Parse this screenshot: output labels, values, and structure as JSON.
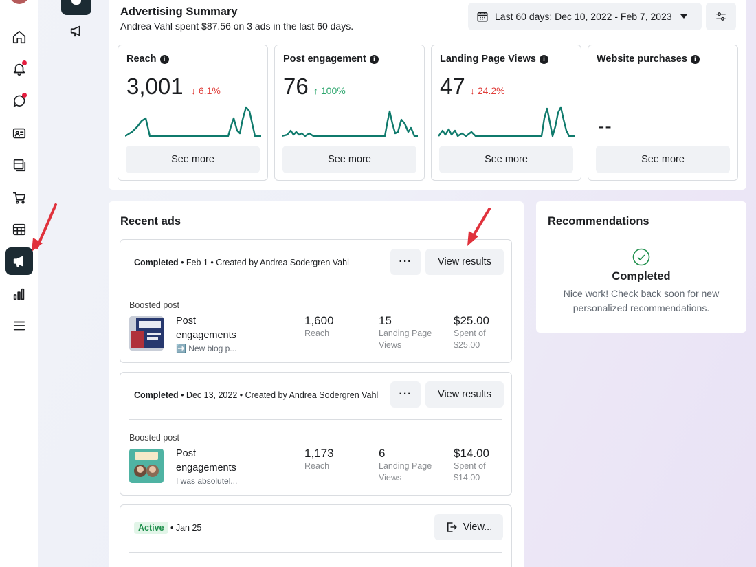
{
  "summary": {
    "title": "Advertising Summary",
    "subtitle": "Andrea Vahl spent $87.56 on 3 ads in the last 60 days.",
    "date_range": "Last 60 days: Dec 10, 2022 - Feb 7, 2023"
  },
  "metrics": [
    {
      "title": "Reach",
      "value": "3,001",
      "delta": "↓ 6.1%",
      "direction": "down",
      "see_more": "See more"
    },
    {
      "title": "Post engagement",
      "value": "76",
      "delta": "↑ 100%",
      "direction": "up",
      "see_more": "See more"
    },
    {
      "title": "Landing Page Views",
      "value": "47",
      "delta": "↓ 24.2%",
      "direction": "down",
      "see_more": "See more"
    },
    {
      "title": "Website purchases",
      "value": "--",
      "delta": "",
      "direction": "none",
      "see_more": "See more"
    }
  ],
  "recent": {
    "title": "Recent ads",
    "ads": [
      {
        "status": "Completed",
        "meta": " • Feb 1 • Created by Andrea Sodergren Vahl",
        "more": "···",
        "view": "View results",
        "type": "Boosted post",
        "name": "Post engagements",
        "desc": "➡️ New blog p...",
        "reach": "1,600",
        "reach_label": "Reach",
        "lpv": "15",
        "lpv_label": "Landing Page Views",
        "spent": "$25.00",
        "spent_label": "Spent of $25.00"
      },
      {
        "status": "Completed",
        "meta": " • Dec 13, 2022 • Created by Andrea Sodergren Vahl",
        "more": "···",
        "view": "View results",
        "type": "Boosted post",
        "name": "Post engagements",
        "desc": "I was absolutel...",
        "reach": "1,173",
        "reach_label": "Reach",
        "lpv": "6",
        "lpv_label": "Landing Page Views",
        "spent": "$14.00",
        "spent_label": "Spent of $14.00"
      },
      {
        "status": "Active",
        "meta": " • Jan 25",
        "view": "View..."
      }
    ]
  },
  "recommendations": {
    "title": "Recommendations",
    "status": "Completed",
    "message": "Nice work! Check back soon for new personalized recommendations."
  },
  "nav_icons": [
    "home-icon",
    "notifications-icon",
    "messages-icon",
    "contacts-icon",
    "content-icon",
    "shop-icon",
    "table-icon",
    "ads-megaphone-icon",
    "insights-icon",
    "menu-icon"
  ],
  "colors": {
    "accent_dark": "#1c2b33",
    "sparkline": "#0f7a6c",
    "down": "#e0403c",
    "up": "#2ba56c",
    "annotation_arrow": "#e0323c"
  }
}
